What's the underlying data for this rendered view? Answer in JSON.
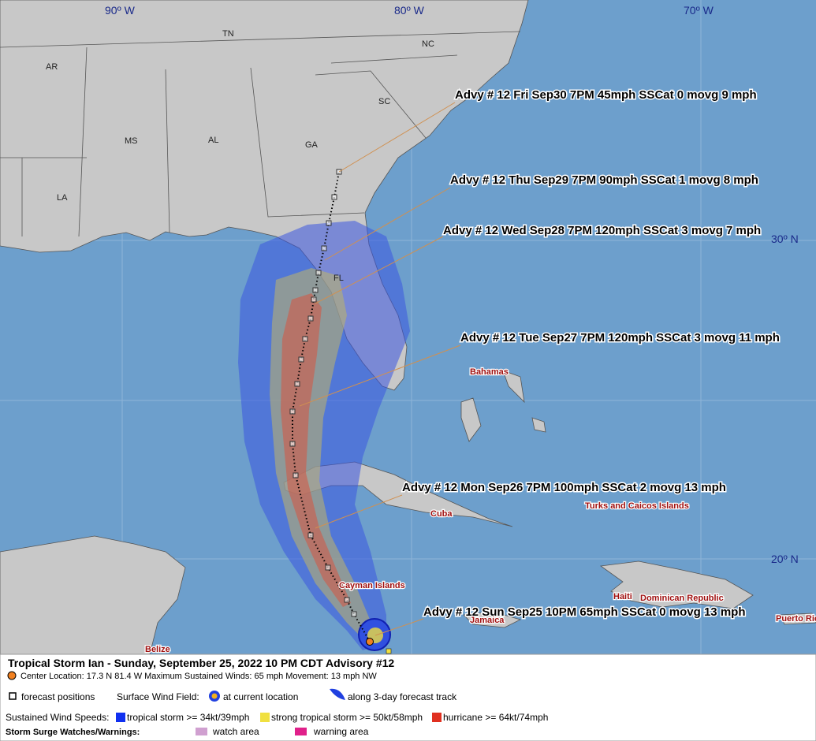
{
  "map": {
    "grid_labels": {
      "longitudes": [
        "90º W",
        "80º W",
        "70º W"
      ],
      "latitudes": [
        "30º N",
        "20º N"
      ]
    },
    "states": [
      "AR",
      "TN",
      "NC",
      "SC",
      "MS",
      "AL",
      "GA",
      "LA",
      "FL"
    ],
    "places": [
      "Bahamas",
      "Cuba",
      "Turks and Caicos Islands",
      "Cayman Islands",
      "Haiti",
      "Dominican Republic",
      "Jamaica",
      "Puerto Rico",
      "Belize"
    ],
    "advisories": [
      "Advy # 12 Fri Sep30 7PM  45mph SSCat 0 movg 9 mph",
      "Advy # 12 Thu Sep29 7PM  90mph SSCat 1 movg 8 mph",
      "Advy # 12 Wed Sep28 7PM  120mph SSCat 3 movg 7 mph",
      "Advy # 12 Tue Sep27 7PM  120mph SSCat 3 movg 11 mph",
      "Advy # 12 Mon Sep26 7PM  100mph SSCat 2 movg 13 mph",
      "Advy # 12 Sun Sep25 10PM  65mph SSCat 0 movg 13 mph"
    ]
  },
  "legend": {
    "title": "Tropical Storm Ian  -  Sunday, September 25, 2022  10 PM CDT   Advisory #12",
    "center": "Center Location: 17.3 N  81.4 W   Maximum Sustained Winds: 65 mph   Movement: 13 mph NW",
    "forecast_positions": "forecast positions",
    "surface_wind_field": "Surface Wind Field:",
    "at_current_location": "at current location",
    "along_track": "along 3-day forecast track",
    "sustained_label": "Sustained Wind Speeds:",
    "tropical_storm": "tropical storm >= 34kt/39mph",
    "strong_tropical_storm": "strong tropical storm >= 50kt/58mph",
    "hurricane": "hurricane >= 64kt/74mph",
    "surge_label": "Storm Surge Watches/Warnings:",
    "watch": "watch area",
    "warning": "warning area"
  }
}
